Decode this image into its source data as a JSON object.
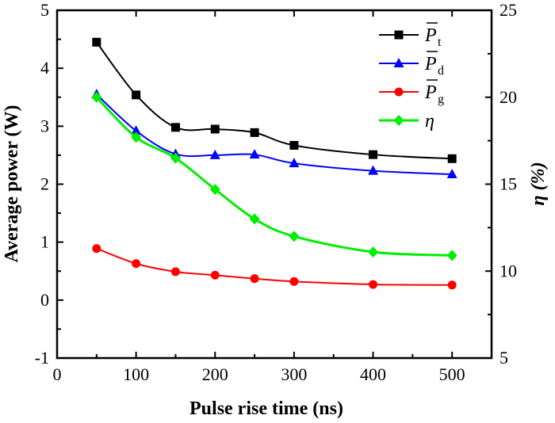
{
  "chart_data": {
    "type": "line",
    "xlabel": "Pulse rise time (ns)",
    "ylabel": "Average power (W)",
    "y2label": "η (%)",
    "xlim": [
      0,
      550
    ],
    "ylim": [
      -1,
      5
    ],
    "y2lim": [
      5,
      25
    ],
    "xticks": [
      "0",
      "100",
      "200",
      "300",
      "400",
      "500"
    ],
    "yticks": [
      "-1",
      "0",
      "1",
      "2",
      "3",
      "4",
      "5"
    ],
    "y2ticks": [
      "5",
      "10",
      "15",
      "20",
      "25"
    ],
    "grid": false,
    "legend_position": "top-right",
    "x": [
      50,
      100,
      150,
      200,
      250,
      300,
      400,
      500
    ],
    "series": [
      {
        "name": "P̄t",
        "base": "P",
        "sub": "t",
        "axis": "left",
        "marker": "square",
        "color": "#000000",
        "values": [
          4.45,
          3.54,
          2.98,
          2.95,
          2.89,
          2.67,
          2.51,
          2.44
        ]
      },
      {
        "name": "P̄d",
        "base": "P",
        "sub": "d",
        "axis": "left",
        "marker": "triangle",
        "color": "#0000ff",
        "values": [
          3.55,
          2.92,
          2.52,
          2.5,
          2.51,
          2.36,
          2.23,
          2.17
        ]
      },
      {
        "name": "P̄g",
        "base": "P",
        "sub": "g",
        "axis": "left",
        "marker": "circle",
        "color": "#ff0000",
        "values": [
          0.89,
          0.63,
          0.49,
          0.43,
          0.37,
          0.32,
          0.27,
          0.26
        ]
      },
      {
        "name": "η",
        "base": "η",
        "sub": "",
        "axis": "right",
        "marker": "diamond",
        "color": "#00ee00",
        "values": [
          20.0,
          17.7,
          16.5,
          14.7,
          13.0,
          12.0,
          11.1,
          10.9
        ]
      }
    ]
  }
}
